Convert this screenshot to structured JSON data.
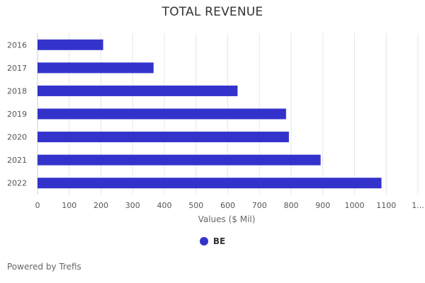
{
  "chart_data": {
    "type": "bar",
    "orientation": "horizontal",
    "title": "TOTAL REVENUE",
    "xlabel": "Values ($ Mil)",
    "ylabel": "",
    "categories": [
      "2016",
      "2017",
      "2018",
      "2019",
      "2020",
      "2021",
      "2022"
    ],
    "series": [
      {
        "name": "BE",
        "values": [
          207,
          366,
          631,
          784,
          793,
          893,
          1085
        ],
        "color": "#3333cc"
      }
    ],
    "xlim": [
      0,
      1200
    ],
    "x_ticks": [
      "0",
      "100",
      "200",
      "300",
      "400",
      "500",
      "600",
      "700",
      "800",
      "900",
      "1000",
      "1100",
      "1..."
    ],
    "grid": true,
    "legend_position": "bottom-center"
  },
  "footer": {
    "text": "Powered by Trefis"
  }
}
